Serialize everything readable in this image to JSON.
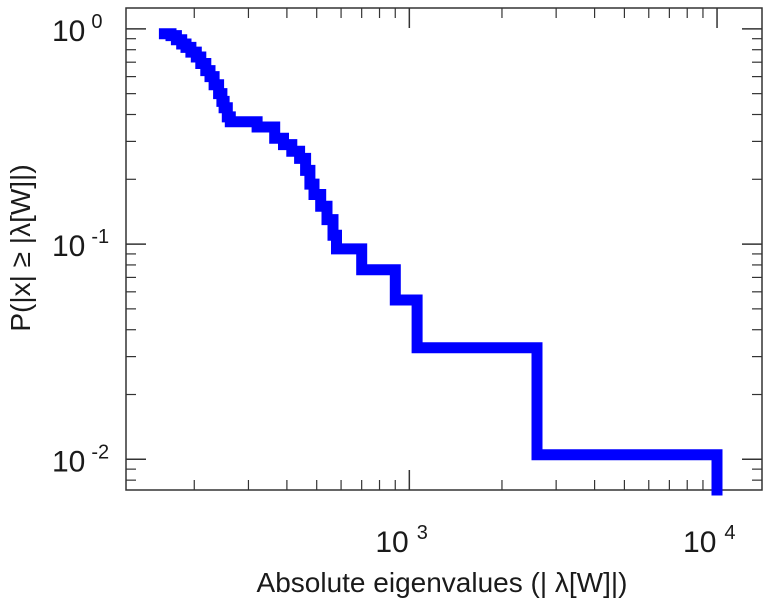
{
  "chart_data": {
    "type": "line",
    "scale": {
      "x": "log",
      "y": "log"
    },
    "xlabel": "Absolute eigenvalues (|     λ[W]|)",
    "ylabel": "P(|x|  ≥ |λ[W]|)",
    "xlim": [
      120,
      14000
    ],
    "ylim": [
      0.0072,
      1.25
    ],
    "grid": false,
    "xticks": [
      {
        "value": 1000,
        "base": "10",
        "exp": "3"
      },
      {
        "value": 10000,
        "base": "10",
        "exp": "4"
      }
    ],
    "yticks": [
      {
        "value": 1,
        "base": "10",
        "exp": "0"
      },
      {
        "value": 0.1,
        "base": "10",
        "exp": "-1"
      },
      {
        "value": 0.01,
        "base": "10",
        "exp": "-2"
      }
    ],
    "series": [
      {
        "color": "#0000ff",
        "style": "step",
        "points": [
          [
            160,
            0.95
          ],
          [
            168,
            0.93
          ],
          [
            175,
            0.89
          ],
          [
            182,
            0.85
          ],
          [
            188,
            0.82
          ],
          [
            195,
            0.78
          ],
          [
            203,
            0.74
          ],
          [
            210,
            0.69
          ],
          [
            218,
            0.64
          ],
          [
            225,
            0.6
          ],
          [
            232,
            0.55
          ],
          [
            240,
            0.5
          ],
          [
            246,
            0.46
          ],
          [
            250,
            0.43
          ],
          [
            256,
            0.39
          ],
          [
            262,
            0.37
          ],
          [
            300,
            0.37
          ],
          [
            320,
            0.35
          ],
          [
            345,
            0.35
          ],
          [
            365,
            0.31
          ],
          [
            390,
            0.29
          ],
          [
            415,
            0.27
          ],
          [
            440,
            0.25
          ],
          [
            460,
            0.22
          ],
          [
            475,
            0.19
          ],
          [
            490,
            0.17
          ],
          [
            515,
            0.15
          ],
          [
            540,
            0.13
          ],
          [
            565,
            0.11
          ],
          [
            580,
            0.095
          ],
          [
            700,
            0.076
          ],
          [
            900,
            0.055
          ],
          [
            1060,
            0.033
          ],
          [
            2600,
            0.0105
          ],
          [
            10000,
            0.0072
          ]
        ]
      }
    ]
  }
}
